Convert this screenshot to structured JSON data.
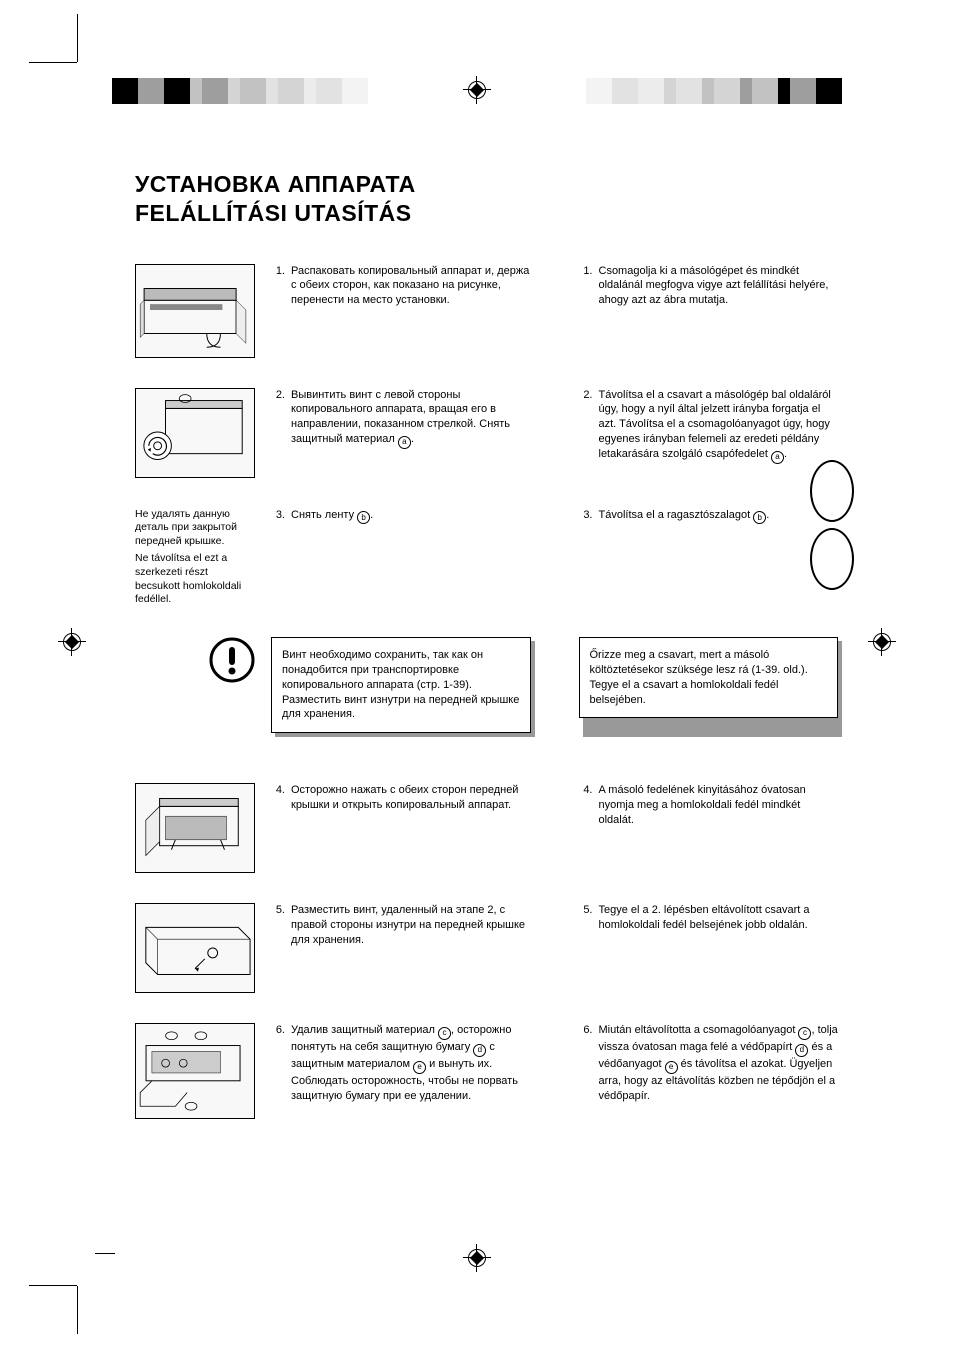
{
  "title_line1": "УСТАНОВКА АППАРАТА",
  "title_line2": "FELÁLLÍTÁSI UTASÍTÁS",
  "caption_ru": "Не удалять данную деталь при закрытой передней крышке.",
  "caption_hu": "Ne távolítsa el ezt a szerkezeti részt becsukott homlokoldali fedéllel.",
  "steps_ru": {
    "s1": "Распаковать копировальный аппарат и, держа с обеих сторон, как показано на рисунке, перенести на место установки.",
    "s2_a": "Вывинтить винт с левой стороны копировального аппарата, вращая его в направлении, показанном стрелкой. Снять защитный материал ",
    "s2_b": ".",
    "s3_a": "Снять ленту ",
    "s3_b": ".",
    "s4": "Осторожно нажать с обеих сторон передней крышки и открыть копировальный аппарат.",
    "s5": "Разместить винт, удаленный на этапе 2, с правой стороны изнутри на передней крышке для хранения.",
    "s6_a": "Удалив защитный материал ",
    "s6_b": ", осторожно понятуть на себя защитную бумагу ",
    "s6_c": " с защитным материалом ",
    "s6_d": " и вынуть их. Соблюдать осторожность, чтобы не порвать защитную бумагу при ее удалении."
  },
  "steps_hu": {
    "s1": "Csomagolja ki a másológépet és mindkét oldalánál megfogva vigye azt felállítási helyére, ahogy azt az ábra mutatja.",
    "s2_a": "Távolítsa el a csavart a másológép bal oldaláról úgy, hogy a nyíl által jelzett irányba forgatja el azt. Távolítsa el a csomagolóanyagot úgy, hogy egyenes irányban felemeli az eredeti példány letakarására szolgáló csapófedelet ",
    "s2_b": ".",
    "s3_a": "Távolítsa el a ragasztószalagot ",
    "s3_b": ".",
    "s4": "A másoló fedelének kinyitásához óvatosan nyomja meg a homlokoldali fedél mindkét oldalát.",
    "s5": "Tegye el a 2. lépésben eltávolított csavart a homlokoldali fedél belsejének jobb oldalán.",
    "s6_a": "Miután eltávolította a csomagolóanyagot ",
    "s6_b": ", tolja vissza óvatosan maga felé a védőpapírt ",
    "s6_c": " és a védőanyagot ",
    "s6_d": " és távolítsa el azokat. Ügyeljen arra, hogy az eltávolítás közben ne tépődjön el a védőpapír."
  },
  "note_ru": "Винт необходимо сохранить, так как он понадобится при транспортировке копировального аппарата (стр. 1-39). Разместить винт изнутри на передней крышке для хранения.",
  "note_hu": "Őrizze meg a csavart, mert a másoló költöztetésekor szüksége lesz rá (1-39. old.). Tegye el a csavart a homlokoldali fedél belsejében.",
  "refs": {
    "a": "a",
    "b": "b",
    "c": "c",
    "d": "d",
    "e": "e"
  },
  "colors": {
    "reg_left": [
      "#000000",
      "#9e9e9e",
      "#000000",
      "#c2c2c2",
      "#9e9e9e",
      "#d4d4d4",
      "#c2c2c2",
      "#e2e2e2",
      "#d4d4d4",
      "#ececec",
      "#e2e2e2",
      "#f3f3f3"
    ],
    "reg_right": [
      "#f3f3f3",
      "#e2e2e2",
      "#ececec",
      "#d4d4d4",
      "#e2e2e2",
      "#c2c2c2",
      "#d4d4d4",
      "#9e9e9e",
      "#c2c2c2",
      "#000000",
      "#9e9e9e",
      "#000000"
    ]
  }
}
